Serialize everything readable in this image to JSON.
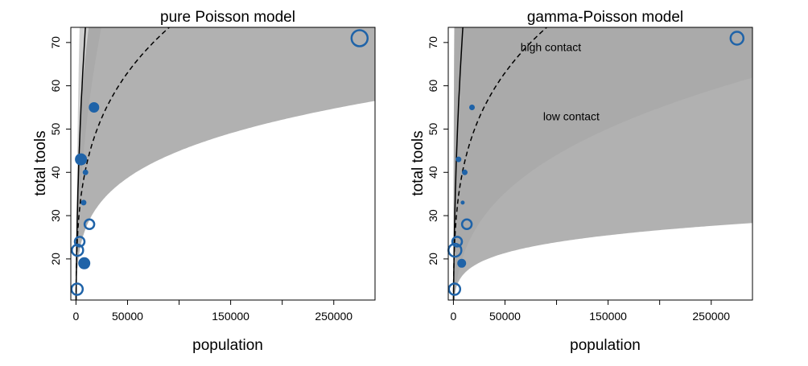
{
  "chart_data": [
    {
      "type": "scatter",
      "title": "pure Poisson model",
      "xlabel": "population",
      "ylabel": "total tools",
      "xlim": [
        -5000,
        290000
      ],
      "ylim": [
        10.5,
        73.5
      ],
      "xticks": [
        0,
        50000,
        100000,
        150000,
        200000,
        250000
      ],
      "xtick_labels": [
        "0",
        "50000",
        "",
        "150000",
        "",
        "250000"
      ],
      "yticks": [
        20,
        30,
        40,
        50,
        60,
        70
      ],
      "ytick_labels": [
        "20",
        "30",
        "40",
        "50",
        "60",
        "70"
      ],
      "annotations": [],
      "points": [
        {
          "x": 1100,
          "y": 13,
          "contact": "low",
          "size": 7
        },
        {
          "x": 1500,
          "y": 22,
          "contact": "low",
          "size": 7
        },
        {
          "x": 3600,
          "y": 24,
          "contact": "low",
          "size": 6
        },
        {
          "x": 4800,
          "y": 43,
          "contact": "high",
          "size": 7
        },
        {
          "x": 7400,
          "y": 33,
          "contact": "high",
          "size": 3
        },
        {
          "x": 8000,
          "y": 19,
          "contact": "high",
          "size": 7
        },
        {
          "x": 9200,
          "y": 40,
          "contact": "high",
          "size": 3
        },
        {
          "x": 13000,
          "y": 28,
          "contact": "low",
          "size": 6
        },
        {
          "x": 17500,
          "y": 55,
          "contact": "high",
          "size": 6
        },
        {
          "x": 275000,
          "y": 71,
          "contact": "low",
          "size": 10
        }
      ],
      "curves": [
        {
          "contact": "high",
          "style": "solid",
          "a": 0.1,
          "b": 0.46,
          "band_lo": 0.09,
          "band_hi": 0.11,
          "band_color": "#c7c7c7"
        },
        {
          "contact": "low",
          "style": "dashed",
          "a": 1.33,
          "b": 0.26,
          "band_lo": 0.09,
          "band_hi": 0.11,
          "band_color": "#a3a3a3"
        }
      ]
    },
    {
      "type": "scatter",
      "title": "gamma-Poisson model",
      "xlabel": "population",
      "ylabel": "total tools",
      "xlim": [
        -5000,
        290000
      ],
      "ylim": [
        10.5,
        73.5
      ],
      "xticks": [
        0,
        50000,
        100000,
        150000,
        200000,
        250000
      ],
      "xtick_labels": [
        "0",
        "50000",
        "",
        "150000",
        "",
        "250000"
      ],
      "yticks": [
        20,
        30,
        40,
        50,
        60,
        70
      ],
      "ytick_labels": [
        "20",
        "30",
        "40",
        "50",
        "60",
        "70"
      ],
      "annotations": [
        {
          "text": "high contact",
          "x": 65000,
          "y": 68
        },
        {
          "text": "low contact",
          "x": 87000,
          "y": 52
        }
      ],
      "points": [
        {
          "x": 1100,
          "y": 13,
          "contact": "low",
          "size": 7
        },
        {
          "x": 1500,
          "y": 22,
          "contact": "low",
          "size": 8
        },
        {
          "x": 3600,
          "y": 24,
          "contact": "low",
          "size": 6
        },
        {
          "x": 5000,
          "y": 43,
          "contact": "high",
          "size": 3
        },
        {
          "x": 9000,
          "y": 33,
          "contact": "high",
          "size": 2
        },
        {
          "x": 8000,
          "y": 19,
          "contact": "high",
          "size": 5
        },
        {
          "x": 11000,
          "y": 40,
          "contact": "high",
          "size": 3
        },
        {
          "x": 13000,
          "y": 28,
          "contact": "low",
          "size": 6
        },
        {
          "x": 18000,
          "y": 55,
          "contact": "high",
          "size": 3
        },
        {
          "x": 275000,
          "y": 71,
          "contact": "low",
          "size": 8
        }
      ],
      "curves": [
        {
          "contact": "high",
          "style": "solid",
          "a": 0.1,
          "b": 0.46,
          "band_lo": 0.28,
          "band_hi": 0.32,
          "band_color": "#c7c7c7"
        },
        {
          "contact": "low",
          "style": "dashed",
          "a": 1.33,
          "b": 0.26,
          "band_lo": 0.2,
          "band_hi": 0.36,
          "band_color": "#a3a3a3"
        }
      ]
    }
  ],
  "colors": {
    "point": "#1f63a8",
    "line": "#000000"
  }
}
